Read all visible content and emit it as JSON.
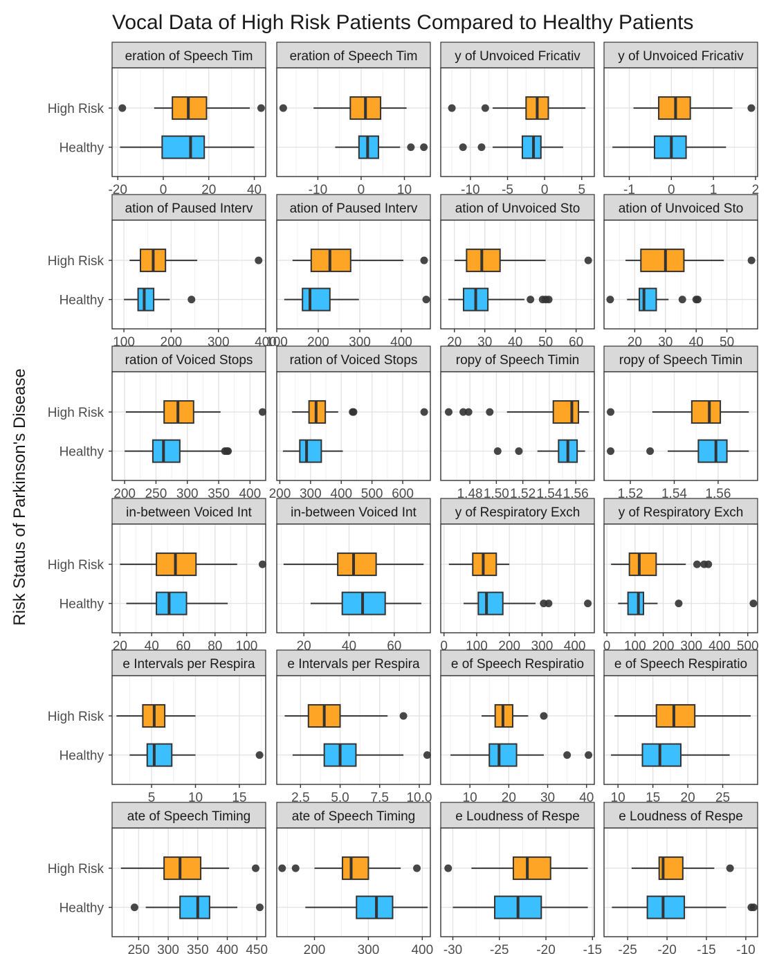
{
  "chart_data": {
    "type": "boxplot",
    "title": "Vocal Data of High Risk Patients Compared to Healthy Patients",
    "xlabel": "",
    "ylabel": "Risk Status of Parkinson's Disease",
    "categories": [
      "High Risk",
      "Healthy"
    ],
    "colors": {
      "High Risk": "#ffa525",
      "Healthy": "#3cbfff"
    },
    "grid": true,
    "layout": {
      "rows": 6,
      "cols": 4
    },
    "panels": [
      {
        "label": "eration of Speech Tim",
        "xlim": [
          -22.5,
          45
        ],
        "ticks": [
          -20,
          0,
          20,
          40
        ],
        "boxes": [
          {
            "group": "High Risk",
            "whisker_low": -4,
            "q1": 4,
            "median": 11,
            "q3": 19,
            "whisker_high": 38,
            "outliers": [
              -18,
              43
            ]
          },
          {
            "group": "Healthy",
            "whisker_low": -19,
            "q1": -0.5,
            "median": 12,
            "q3": 18,
            "whisker_high": 40,
            "outliers": []
          }
        ]
      },
      {
        "label": "eration of Speech Tim",
        "xlim": [
          -19.5,
          16
        ],
        "ticks": [
          -10,
          0,
          10
        ],
        "boxes": [
          {
            "group": "High Risk",
            "whisker_low": -11,
            "q1": -2.5,
            "median": 1,
            "q3": 4.5,
            "whisker_high": 10.5,
            "outliers": [
              -18
            ]
          },
          {
            "group": "Healthy",
            "whisker_low": -6,
            "q1": -0.5,
            "median": 1.5,
            "q3": 4,
            "whisker_high": 9,
            "outliers": [
              11.5,
              14.5
            ]
          }
        ]
      },
      {
        "label": "y of Unvoiced Fricativ",
        "xlim": [
          -14,
          6.7
        ],
        "ticks": [
          -10,
          -5,
          0,
          5
        ],
        "boxes": [
          {
            "group": "High Risk",
            "whisker_low": -7,
            "q1": -2.5,
            "median": -1,
            "q3": 0.5,
            "whisker_high": 5.5,
            "outliers": [
              -12.5,
              -8
            ]
          },
          {
            "group": "Healthy",
            "whisker_low": -7,
            "q1": -3,
            "median": -1.5,
            "q3": -0.5,
            "whisker_high": 2.5,
            "outliers": [
              -11,
              -8.5
            ]
          }
        ]
      },
      {
        "label": "y of Unvoiced Fricativ",
        "xlim": [
          -1.6,
          2.05
        ],
        "ticks": [
          -1,
          0,
          1,
          2
        ],
        "boxes": [
          {
            "group": "High Risk",
            "whisker_low": -0.9,
            "q1": -0.3,
            "median": 0.1,
            "q3": 0.45,
            "whisker_high": 1.45,
            "outliers": [
              1.9
            ]
          },
          {
            "group": "Healthy",
            "whisker_low": -1.4,
            "q1": -0.4,
            "median": 0,
            "q3": 0.35,
            "whisker_high": 1.3,
            "outliers": []
          }
        ]
      },
      {
        "label": "ation of Paused Interv",
        "xlim": [
          75,
          400
        ],
        "ticks": [
          100,
          200,
          300,
          400
        ],
        "boxes": [
          {
            "group": "High Risk",
            "whisker_low": 112,
            "q1": 135,
            "median": 162,
            "q3": 188,
            "whisker_high": 255,
            "outliers": [
              385
            ]
          },
          {
            "group": "Healthy",
            "whisker_low": 100,
            "q1": 130,
            "median": 143,
            "q3": 163,
            "whisker_high": 197,
            "outliers": [
              243
            ]
          }
        ]
      },
      {
        "label": "ation of Paused Interv",
        "xlim": [
          100,
          470
        ],
        "ticks": [
          100,
          200,
          300,
          400
        ],
        "boxes": [
          {
            "group": "High Risk",
            "whisker_low": 138,
            "q1": 183,
            "median": 228,
            "q3": 278,
            "whisker_high": 405,
            "outliers": [
              455
            ]
          },
          {
            "group": "Healthy",
            "whisker_low": 118,
            "q1": 162,
            "median": 180,
            "q3": 228,
            "whisker_high": 298,
            "outliers": [
              460
            ]
          }
        ]
      },
      {
        "label": "ation of Unvoiced Sto",
        "xlim": [
          15.5,
          66
        ],
        "ticks": [
          20,
          30,
          40,
          50,
          60
        ],
        "boxes": [
          {
            "group": "High Risk",
            "whisker_low": 20,
            "q1": 24,
            "median": 29,
            "q3": 35,
            "whisker_high": 50,
            "outliers": [
              64
            ]
          },
          {
            "group": "Healthy",
            "whisker_low": 18,
            "q1": 23,
            "median": 27,
            "q3": 31,
            "whisker_high": 43,
            "outliers": [
              45,
              49,
              50,
              51
            ]
          }
        ]
      },
      {
        "label": "ation of Unvoiced Sto",
        "xlim": [
          10,
          60
        ],
        "ticks": [
          20,
          30,
          40,
          50
        ],
        "boxes": [
          {
            "group": "High Risk",
            "whisker_low": 17,
            "q1": 22,
            "median": 30,
            "q3": 36,
            "whisker_high": 49,
            "outliers": [
              58
            ]
          },
          {
            "group": "Healthy",
            "whisker_low": 17.5,
            "q1": 21.5,
            "median": 23,
            "q3": 27,
            "whisker_high": 31,
            "outliers": [
              12,
              35.5,
              40,
              40.5
            ]
          }
        ]
      },
      {
        "label": "ration of Voiced Stops",
        "xlim": [
          180,
          425
        ],
        "ticks": [
          200,
          250,
          300,
          350,
          400
        ],
        "boxes": [
          {
            "group": "High Risk",
            "whisker_low": 202,
            "q1": 263,
            "median": 285,
            "q3": 310,
            "whisker_high": 353,
            "outliers": [
              420
            ]
          },
          {
            "group": "Healthy",
            "whisker_low": 200,
            "q1": 245,
            "median": 262,
            "q3": 288,
            "whisker_high": 358,
            "outliers": [
              360,
              363,
              365
            ]
          }
        ]
      },
      {
        "label": "ration of Voiced Stops",
        "xlim": [
          190,
          690
        ],
        "ticks": [
          200,
          300,
          400,
          500,
          600
        ],
        "boxes": [
          {
            "group": "High Risk",
            "whisker_low": 240,
            "q1": 295,
            "median": 318,
            "q3": 348,
            "whisker_high": 390,
            "outliers": [
              437,
              440,
              670
            ]
          },
          {
            "group": "Healthy",
            "whisker_low": 210,
            "q1": 265,
            "median": 287,
            "q3": 335,
            "whisker_high": 405,
            "outliers": []
          }
        ]
      },
      {
        "label": "ropy of Speech Timin",
        "xlim": [
          1.458,
          1.574
        ],
        "ticks": [
          1.48,
          1.5,
          1.52,
          1.54,
          1.56
        ],
        "boxes": [
          {
            "group": "High Risk",
            "whisker_low": 1.508,
            "q1": 1.543,
            "median": 1.557,
            "q3": 1.562,
            "whisker_high": 1.57,
            "outliers": [
              1.464,
              1.475,
              1.479,
              1.495
            ]
          },
          {
            "group": "Healthy",
            "whisker_low": 1.531,
            "q1": 1.547,
            "median": 1.554,
            "q3": 1.561,
            "whisker_high": 1.567,
            "outliers": [
              1.501,
              1.517
            ]
          }
        ]
      },
      {
        "label": "ropy of Speech Timin",
        "xlim": [
          1.508,
          1.578
        ],
        "ticks": [
          1.52,
          1.54,
          1.56
        ],
        "boxes": [
          {
            "group": "High Risk",
            "whisker_low": 1.53,
            "q1": 1.548,
            "median": 1.556,
            "q3": 1.561,
            "whisker_high": 1.574,
            "outliers": [
              1.511
            ]
          },
          {
            "group": "Healthy",
            "whisker_low": 1.537,
            "q1": 1.551,
            "median": 1.559,
            "q3": 1.564,
            "whisker_high": 1.574,
            "outliers": [
              1.511,
              1.529
            ]
          }
        ]
      },
      {
        "label": "in-between Voiced Int",
        "xlim": [
          15,
          112
        ],
        "ticks": [
          20,
          40,
          60,
          80,
          100
        ],
        "boxes": [
          {
            "group": "High Risk",
            "whisker_low": 20,
            "q1": 43,
            "median": 55,
            "q3": 68,
            "whisker_high": 94,
            "outliers": [
              110
            ]
          },
          {
            "group": "Healthy",
            "whisker_low": 24,
            "q1": 43,
            "median": 51,
            "q3": 62,
            "whisker_high": 88,
            "outliers": []
          }
        ]
      },
      {
        "label": "in-between Voiced Int",
        "xlim": [
          8,
          76
        ],
        "ticks": [
          20,
          40,
          60
        ],
        "boxes": [
          {
            "group": "High Risk",
            "whisker_low": 11,
            "q1": 35,
            "median": 42,
            "q3": 52,
            "whisker_high": 73,
            "outliers": []
          },
          {
            "group": "Healthy",
            "whisker_low": 23,
            "q1": 37,
            "median": 46,
            "q3": 56,
            "whisker_high": 72,
            "outliers": []
          }
        ]
      },
      {
        "label": "y of Respiratory Exch",
        "xlim": [
          -10,
          460
        ],
        "ticks": [
          0,
          100,
          200,
          300,
          400
        ],
        "boxes": [
          {
            "group": "High Risk",
            "whisker_low": 15,
            "q1": 88,
            "median": 120,
            "q3": 160,
            "whisker_high": 200,
            "outliers": []
          },
          {
            "group": "Healthy",
            "whisker_low": 60,
            "q1": 105,
            "median": 130,
            "q3": 180,
            "whisker_high": 280,
            "outliers": [
              305,
              320,
              440
            ]
          }
        ]
      },
      {
        "label": "y of Respiratory Exch",
        "xlim": [
          -10,
          535
        ],
        "ticks": [
          0,
          100,
          200,
          300,
          400,
          500
        ],
        "boxes": [
          {
            "group": "High Risk",
            "whisker_low": 15,
            "q1": 80,
            "median": 115,
            "q3": 175,
            "whisker_high": 280,
            "outliers": [
              320,
              345,
              360
            ]
          },
          {
            "group": "Healthy",
            "whisker_low": 40,
            "q1": 75,
            "median": 112,
            "q3": 130,
            "whisker_high": 180,
            "outliers": [
              255,
              520
            ]
          }
        ]
      },
      {
        "label": "e Intervals per Respira",
        "xlim": [
          0.5,
          18
        ],
        "ticks": [
          5,
          10,
          15
        ],
        "boxes": [
          {
            "group": "High Risk",
            "whisker_low": 1,
            "q1": 4,
            "median": 5.3,
            "q3": 6.5,
            "whisker_high": 10,
            "outliers": []
          },
          {
            "group": "Healthy",
            "whisker_low": 2.5,
            "q1": 4.5,
            "median": 5.3,
            "q3": 7.3,
            "whisker_high": 10,
            "outliers": [
              17.3
            ]
          }
        ]
      },
      {
        "label": "e Intervals per Respira",
        "xlim": [
          1.0,
          10.7
        ],
        "ticks": [
          2.5,
          5.0,
          7.5,
          10.0
        ],
        "boxes": [
          {
            "group": "High Risk",
            "whisker_low": 1.5,
            "q1": 3.0,
            "median": 4.0,
            "q3": 5.0,
            "whisker_high": 8.0,
            "outliers": [
              9.0
            ]
          },
          {
            "group": "Healthy",
            "whisker_low": 2.0,
            "q1": 4.0,
            "median": 5.0,
            "q3": 6.0,
            "whisker_high": 9.0,
            "outliers": [
              10.5
            ]
          }
        ]
      },
      {
        "label": "e of Speech Respiratio",
        "xlim": [
          2.5,
          42
        ],
        "ticks": [
          10,
          20,
          30,
          40
        ],
        "boxes": [
          {
            "group": "High Risk",
            "whisker_low": 13,
            "q1": 16.5,
            "median": 18.5,
            "q3": 21,
            "whisker_high": 25,
            "outliers": [
              29
            ]
          },
          {
            "group": "Healthy",
            "whisker_low": 5,
            "q1": 15,
            "median": 17.5,
            "q3": 22,
            "whisker_high": 29,
            "outliers": [
              35,
              40.5
            ]
          }
        ]
      },
      {
        "label": "e of Speech Respiratio",
        "xlim": [
          8,
          30
        ],
        "ticks": [
          10,
          15,
          20,
          25
        ],
        "boxes": [
          {
            "group": "High Risk",
            "whisker_low": 9.5,
            "q1": 15.5,
            "median": 18,
            "q3": 21,
            "whisker_high": 29,
            "outliers": []
          },
          {
            "group": "Healthy",
            "whisker_low": 9,
            "q1": 13.5,
            "median": 16,
            "q3": 19,
            "whisker_high": 26,
            "outliers": []
          }
        ]
      },
      {
        "label": "ate of Speech Timing",
        "xlim": [
          205,
          465
        ],
        "ticks": [
          250,
          300,
          350,
          400,
          450
        ],
        "boxes": [
          {
            "group": "High Risk",
            "whisker_low": 220,
            "q1": 293,
            "median": 320,
            "q3": 355,
            "whisker_high": 403,
            "outliers": [
              448
            ]
          },
          {
            "group": "Healthy",
            "whisker_low": 262,
            "q1": 320,
            "median": 350,
            "q3": 370,
            "whisker_high": 417,
            "outliers": [
              243,
              455
            ]
          }
        ]
      },
      {
        "label": "ate of Speech Timing",
        "xlim": [
          130,
          415
        ],
        "ticks": [
          200,
          300,
          400
        ],
        "boxes": [
          {
            "group": "High Risk",
            "whisker_low": 200,
            "q1": 252,
            "median": 268,
            "q3": 300,
            "whisker_high": 360,
            "outliers": [
              140,
              165,
              390
            ]
          },
          {
            "group": "Healthy",
            "whisker_low": 183,
            "q1": 278,
            "median": 315,
            "q3": 345,
            "whisker_high": 410,
            "outliers": []
          }
        ]
      },
      {
        "label": "e Loudness of Respe",
        "xlim": [
          -31.3,
          -14.8
        ],
        "ticks": [
          -30,
          -25,
          -20,
          -15
        ],
        "boxes": [
          {
            "group": "High Risk",
            "whisker_low": -28,
            "q1": -23.5,
            "median": -22,
            "q3": -19.5,
            "whisker_high": -15.5,
            "outliers": [
              -30.5
            ]
          },
          {
            "group": "Healthy",
            "whisker_low": -30,
            "q1": -25.5,
            "median": -23,
            "q3": -20.5,
            "whisker_high": -15.5,
            "outliers": []
          }
        ]
      },
      {
        "label": "e Loudness of Respe",
        "xlim": [
          -28,
          -8.5
        ],
        "ticks": [
          -25,
          -20,
          -15,
          -10
        ],
        "boxes": [
          {
            "group": "High Risk",
            "whisker_low": -24.5,
            "q1": -21,
            "median": -20.5,
            "q3": -18,
            "whisker_high": -14,
            "outliers": [
              -12
            ]
          },
          {
            "group": "Healthy",
            "whisker_low": -27,
            "q1": -22.5,
            "median": -20.5,
            "q3": -17.8,
            "whisker_high": -12.5,
            "outliers": [
              -9.3,
              -9
            ]
          }
        ]
      }
    ]
  }
}
